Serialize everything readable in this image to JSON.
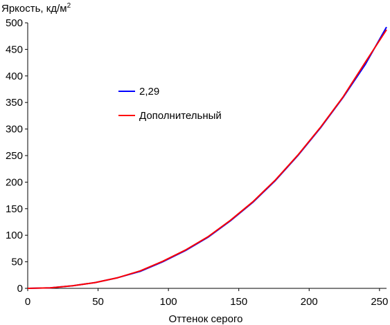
{
  "chart_data": {
    "type": "line",
    "xlabel": "Оттенок серого",
    "ylabel_main": "Яркость, кд/м",
    "ylabel_sup": "2",
    "xlim": [
      0,
      255
    ],
    "ylim": [
      0,
      500
    ],
    "xticks": [
      "0",
      "50",
      "100",
      "150",
      "200",
      "250"
    ],
    "yticks": [
      "0",
      "50",
      "100",
      "150",
      "200",
      "250",
      "300",
      "350",
      "400",
      "450",
      "500"
    ],
    "grid": false,
    "legend": "center-left",
    "series": [
      {
        "name": "2,29",
        "color": "#0000ff",
        "x": [
          0,
          16,
          32,
          48,
          64,
          80,
          96,
          112,
          128,
          144,
          160,
          176,
          192,
          208,
          224,
          240,
          255
        ],
        "y": [
          0,
          1,
          5,
          11,
          20,
          32,
          50,
          71,
          96,
          127,
          162,
          203,
          250,
          302,
          359,
          422,
          492
        ]
      },
      {
        "name": "Дополнительный",
        "color": "#ff0000",
        "x": [
          0,
          16,
          32,
          48,
          64,
          80,
          96,
          112,
          128,
          144,
          160,
          176,
          192,
          208,
          224,
          240,
          255
        ],
        "y": [
          0,
          1,
          5,
          11,
          20,
          33,
          51,
          72,
          97,
          128,
          163,
          204,
          251,
          303,
          360,
          426,
          487
        ]
      }
    ]
  }
}
